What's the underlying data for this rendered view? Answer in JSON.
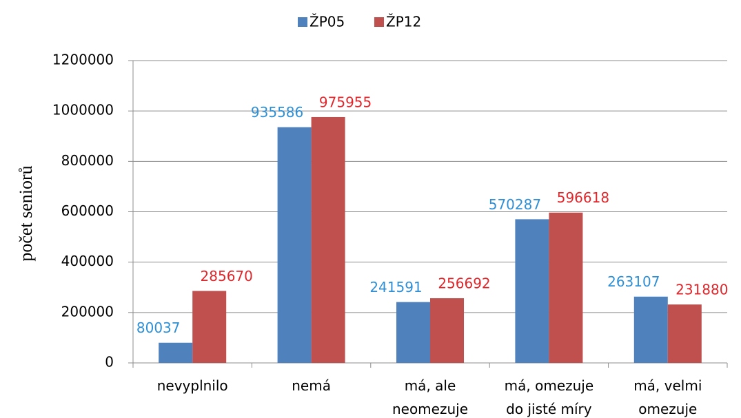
{
  "chart_data": {
    "type": "bar",
    "y_label": "počet seniorů",
    "categories": [
      "nevyplnilo",
      "nemá",
      "má, ale\nneomezuje",
      "má, omezuje\ndo jisté míry",
      "má, velmi\nomezuje"
    ],
    "series": [
      {
        "name": "ŽP05",
        "color": "#4f81bd",
        "label_color": "#2e8fd6",
        "values": [
          80037,
          935586,
          241591,
          570287,
          263107
        ]
      },
      {
        "name": "ŽP12",
        "color": "#c0504d",
        "label_color": "#e0262a",
        "values": [
          285670,
          975955,
          256692,
          596618,
          231880
        ]
      }
    ],
    "ylim": [
      0,
      1200000
    ],
    "yticks": [
      0,
      200000,
      400000,
      600000,
      800000,
      1000000,
      1200000
    ],
    "grid": true,
    "legend": "top"
  }
}
